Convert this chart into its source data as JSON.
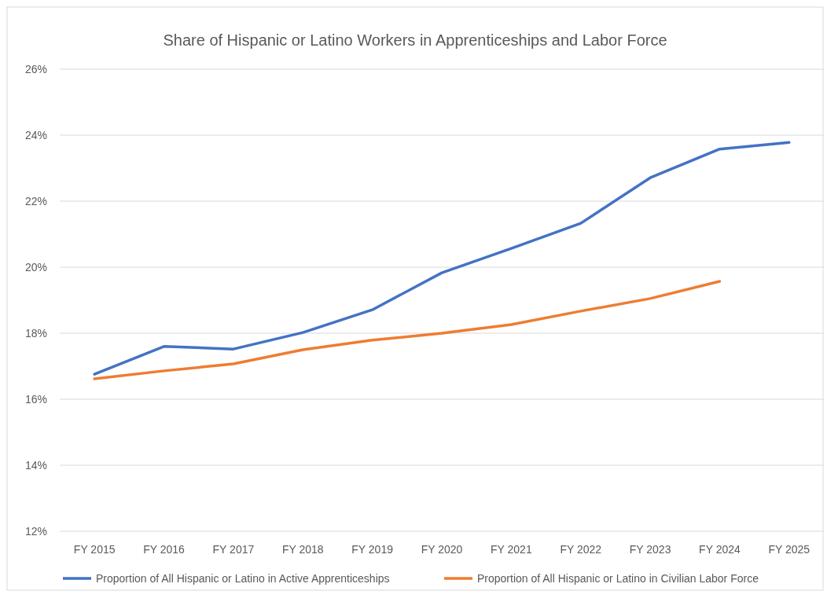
{
  "chart_data": {
    "type": "line",
    "title": "Share of Hispanic or Latino Workers in Apprenticeships and Labor Force",
    "categories": [
      "FY 2015",
      "FY 2016",
      "FY 2017",
      "FY 2018",
      "FY 2019",
      "FY 2020",
      "FY 2021",
      "FY 2022",
      "FY 2023",
      "FY 2024",
      "FY 2025"
    ],
    "series": [
      {
        "name": "Proportion of All Hispanic or Latino in Active Apprenticeships",
        "color": "#4472c4",
        "values": [
          16.76,
          17.6,
          17.52,
          18.02,
          18.71,
          19.83,
          20.57,
          21.33,
          22.71,
          23.58,
          23.78
        ]
      },
      {
        "name": "Proportion of All Hispanic or Latino in Civilian Labor Force",
        "color": "#ed7d31",
        "values": [
          16.62,
          16.86,
          17.07,
          17.5,
          17.79,
          18.0,
          18.26,
          18.67,
          19.05,
          19.57,
          null
        ]
      }
    ],
    "ylim": [
      12,
      26
    ],
    "yticks": [
      {
        "value": 12,
        "label": "12%"
      },
      {
        "value": 14,
        "label": "14%"
      },
      {
        "value": 16,
        "label": "16%"
      },
      {
        "value": 18,
        "label": "18%"
      },
      {
        "value": 20,
        "label": "20%"
      },
      {
        "value": 22,
        "label": "22%"
      },
      {
        "value": 24,
        "label": "24%"
      },
      {
        "value": 26,
        "label": "26%"
      }
    ],
    "grid": "y",
    "legend": "bottom",
    "line_style": "solid",
    "marker": "none"
  }
}
